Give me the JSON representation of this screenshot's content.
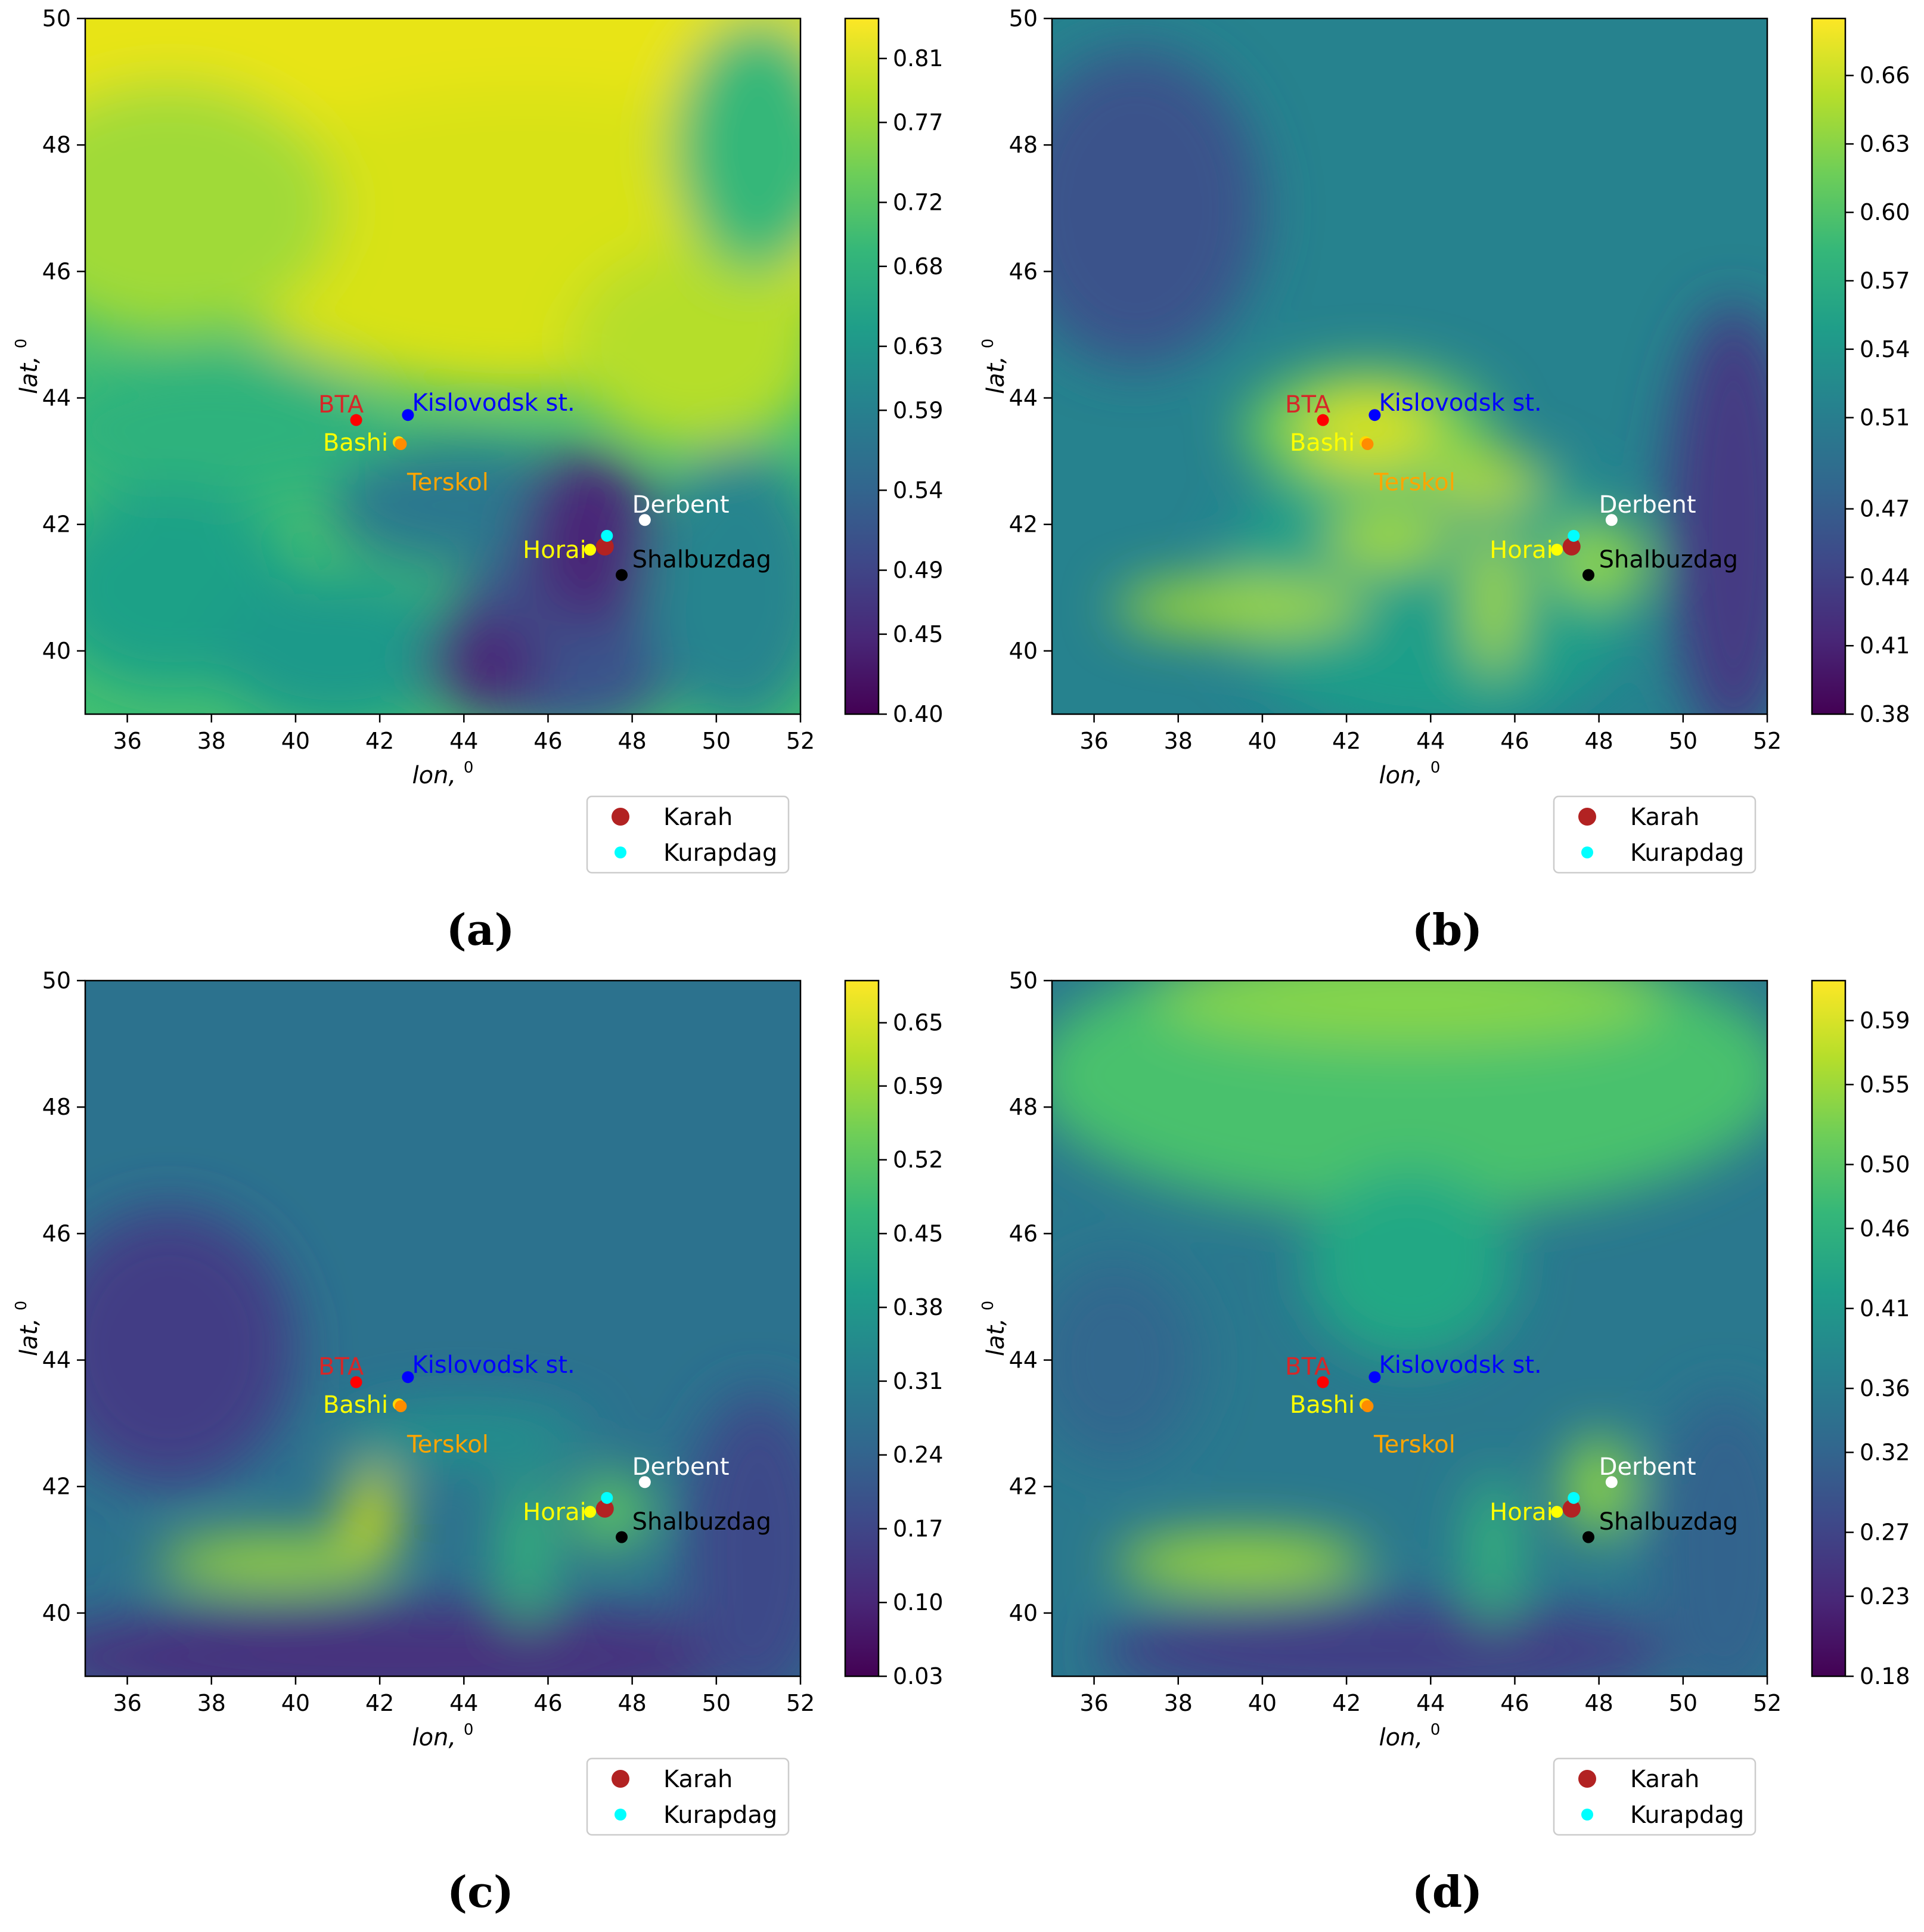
{
  "panels": [
    {
      "id": "a",
      "caption": "(a)",
      "colorbar_ticks": [
        "0.40",
        "0.45",
        "0.49",
        "0.54",
        "0.59",
        "0.63",
        "0.68",
        "0.72",
        "0.77",
        "0.81"
      ],
      "colorbar_range": [
        0.4,
        0.835
      ],
      "background": "#43bf71",
      "field": [
        {
          "type": "ellipse",
          "cx": 42,
          "cy": 49.3,
          "rx": 12,
          "ry": 2.6,
          "color": "#e8e419"
        },
        {
          "type": "ellipse",
          "cx": 45.5,
          "cy": 46.5,
          "rx": 8,
          "ry": 2.4,
          "color": "#d8e219"
        },
        {
          "type": "ellipse",
          "cx": 49.5,
          "cy": 44.8,
          "rx": 3,
          "ry": 1.6,
          "color": "#b5de2b"
        },
        {
          "type": "ellipse",
          "cx": 37,
          "cy": 47,
          "rx": 4,
          "ry": 2,
          "color": "#a0da39"
        },
        {
          "type": "ellipse",
          "cx": 51,
          "cy": 48,
          "rx": 2,
          "ry": 2,
          "color": "#35b779"
        },
        {
          "type": "ellipse",
          "cx": 38,
          "cy": 43.5,
          "rx": 4,
          "ry": 1.2,
          "color": "#2db27d"
        },
        {
          "type": "ellipse",
          "cx": 37,
          "cy": 41,
          "rx": 3,
          "ry": 1.6,
          "color": "#1fa187"
        },
        {
          "type": "ellipse",
          "cx": 41,
          "cy": 40,
          "rx": 3,
          "ry": 1.2,
          "color": "#1f9a8a"
        },
        {
          "type": "ellipse",
          "cx": 44,
          "cy": 42.3,
          "rx": 3.2,
          "ry": 1.0,
          "color": "#2a788e"
        },
        {
          "type": "ellipse",
          "cx": 46.5,
          "cy": 40.2,
          "rx": 3,
          "ry": 1.5,
          "color": "#3b528b"
        },
        {
          "type": "ellipse",
          "cx": 47,
          "cy": 41.8,
          "rx": 1.6,
          "ry": 1.4,
          "color": "#482878"
        },
        {
          "type": "ellipse",
          "cx": 44.5,
          "cy": 39.8,
          "rx": 1.4,
          "ry": 0.8,
          "color": "#482878"
        },
        {
          "type": "ellipse",
          "cx": 50.5,
          "cy": 41,
          "rx": 2.2,
          "ry": 2.2,
          "color": "#25848e"
        }
      ]
    },
    {
      "id": "b",
      "caption": "(b)",
      "colorbar_ticks": [
        "0.38",
        "0.41",
        "0.44",
        "0.47",
        "0.51",
        "0.54",
        "0.57",
        "0.60",
        "0.63",
        "0.66"
      ],
      "colorbar_range": [
        0.38,
        0.685
      ],
      "background": "#26828e",
      "field": [
        {
          "type": "ellipse",
          "cx": 37,
          "cy": 47,
          "rx": 3,
          "ry": 2.5,
          "color": "#3b528b"
        },
        {
          "type": "ellipse",
          "cx": 51.2,
          "cy": 42,
          "rx": 1.6,
          "ry": 3.5,
          "color": "#443a83"
        },
        {
          "type": "ellipse",
          "cx": 44,
          "cy": 41,
          "rx": 5,
          "ry": 2.3,
          "color": "#1f9e89"
        },
        {
          "type": "ellipse",
          "cx": 42.5,
          "cy": 43.5,
          "rx": 3,
          "ry": 1.0,
          "color": "#6ccd5a"
        },
        {
          "type": "ellipse",
          "cx": 42.5,
          "cy": 43.5,
          "rx": 1.6,
          "ry": 0.6,
          "color": "#d8e219"
        },
        {
          "type": "ellipse",
          "cx": 45.3,
          "cy": 42.7,
          "rx": 1.4,
          "ry": 0.4,
          "color": "#b5de2b"
        },
        {
          "type": "ellipse",
          "cx": 39.5,
          "cy": 40.7,
          "rx": 3,
          "ry": 0.45,
          "color": "#a0da39"
        },
        {
          "type": "ellipse",
          "cx": 43,
          "cy": 41.8,
          "rx": 1.5,
          "ry": 0.5,
          "color": "#a0da39"
        },
        {
          "type": "ellipse",
          "cx": 45.5,
          "cy": 40.8,
          "rx": 0.6,
          "ry": 1.2,
          "color": "#a0da39"
        },
        {
          "type": "ellipse",
          "cx": 48,
          "cy": 41.4,
          "rx": 1.2,
          "ry": 0.6,
          "color": "#8fd744"
        }
      ]
    },
    {
      "id": "c",
      "caption": "(c)",
      "colorbar_ticks": [
        "0.03",
        "0.10",
        "0.17",
        "0.24",
        "0.31",
        "0.38",
        "0.45",
        "0.52",
        "0.59",
        "0.65"
      ],
      "colorbar_range": [
        0.03,
        0.69
      ],
      "background": "#2c728e",
      "field": [
        {
          "type": "ellipse",
          "cx": 37,
          "cy": 44.2,
          "rx": 3,
          "ry": 2.2,
          "color": "#433e85"
        },
        {
          "type": "ellipse",
          "cx": 42.5,
          "cy": 39.3,
          "rx": 9,
          "ry": 0.9,
          "color": "#46307e"
        },
        {
          "type": "ellipse",
          "cx": 51,
          "cy": 41,
          "rx": 1.8,
          "ry": 2.5,
          "color": "#3e4a89"
        },
        {
          "type": "ellipse",
          "cx": 44,
          "cy": 42.8,
          "rx": 3,
          "ry": 0.5,
          "color": "#21918c"
        },
        {
          "type": "ellipse",
          "cx": 39.5,
          "cy": 40.8,
          "rx": 2.8,
          "ry": 0.4,
          "color": "#a0da39"
        },
        {
          "type": "ellipse",
          "cx": 41.8,
          "cy": 41.6,
          "rx": 0.6,
          "ry": 0.7,
          "color": "#d8e219"
        },
        {
          "type": "ellipse",
          "cx": 45.5,
          "cy": 41,
          "rx": 0.6,
          "ry": 1.2,
          "color": "#35b779"
        },
        {
          "type": "ellipse",
          "cx": 47.5,
          "cy": 41.6,
          "rx": 0.9,
          "ry": 0.6,
          "color": "#5ec962"
        }
      ]
    },
    {
      "id": "d",
      "caption": "(d)",
      "colorbar_ticks": [
        "0.18",
        "0.23",
        "0.27",
        "0.32",
        "0.36",
        "0.41",
        "0.46",
        "0.50",
        "0.55",
        "0.59"
      ],
      "colorbar_range": [
        0.18,
        0.615
      ],
      "background": "#2a788e",
      "field": [
        {
          "type": "ellipse",
          "cx": 43.5,
          "cy": 48.5,
          "rx": 9,
          "ry": 2.2,
          "color": "#4ac16d"
        },
        {
          "type": "ellipse",
          "cx": 43.5,
          "cy": 49.7,
          "rx": 6,
          "ry": 0.7,
          "color": "#86d549"
        },
        {
          "type": "ellipse",
          "cx": 43.5,
          "cy": 45.5,
          "rx": 2.5,
          "ry": 1.5,
          "color": "#22a884"
        },
        {
          "type": "ellipse",
          "cx": 36.5,
          "cy": 44,
          "rx": 2,
          "ry": 1.6,
          "color": "#31688e"
        },
        {
          "type": "ellipse",
          "cx": 43,
          "cy": 39.4,
          "rx": 7,
          "ry": 0.8,
          "color": "#433e85"
        },
        {
          "type": "ellipse",
          "cx": 51,
          "cy": 41,
          "rx": 1.8,
          "ry": 2.5,
          "color": "#33638d"
        },
        {
          "type": "ellipse",
          "cx": 39.5,
          "cy": 40.8,
          "rx": 3,
          "ry": 0.45,
          "color": "#a0da39"
        },
        {
          "type": "ellipse",
          "cx": 48,
          "cy": 42,
          "rx": 0.8,
          "ry": 0.8,
          "color": "#8fd744"
        },
        {
          "type": "ellipse",
          "cx": 45.5,
          "cy": 41,
          "rx": 0.6,
          "ry": 1.2,
          "color": "#35b779"
        }
      ]
    }
  ],
  "axes": {
    "xlabel": "lon,",
    "xlabel_sup": "0",
    "ylabel": "lat,",
    "ylabel_sup": "0",
    "xlim": [
      35,
      52
    ],
    "ylim": [
      39,
      50
    ],
    "xticks": [
      "36",
      "38",
      "40",
      "42",
      "44",
      "46",
      "48",
      "50",
      "52"
    ],
    "yticks": [
      "40",
      "42",
      "44",
      "46",
      "48",
      "50"
    ]
  },
  "sites": [
    {
      "name": "BTA",
      "lon": 41.44,
      "lat": 43.65,
      "color": "#ff0000",
      "label_color": "#d62728",
      "label_dx": -0.9,
      "label_dy": 0.25
    },
    {
      "name": "Kislovodsk st.",
      "lon": 42.67,
      "lat": 43.73,
      "color": "#0000ff",
      "label_color": "#0000ff",
      "label_dx": 0.1,
      "label_dy": 0.2
    },
    {
      "name": "Bashi",
      "lon": 42.45,
      "lat": 43.3,
      "color": "#ffd700",
      "label_color": "#ffff00",
      "label_dx": -1.8,
      "label_dy": 0.0
    },
    {
      "name": "Terskol",
      "lon": 42.5,
      "lat": 43.27,
      "color": "#ff8c00",
      "label_color": "#ffa500",
      "label_dx": 0.15,
      "label_dy": -0.6
    },
    {
      "name": "Derbent",
      "lon": 48.3,
      "lat": 42.07,
      "color": "#ffffff",
      "label_color": "#ffffff",
      "label_dx": -0.3,
      "label_dy": 0.25
    },
    {
      "name": "Horai",
      "lon": 47.0,
      "lat": 41.6,
      "color": "#ffff00",
      "label_color": "#ffff00",
      "label_dx": -1.6,
      "label_dy": 0.0
    },
    {
      "name": "Shalbuzdag",
      "lon": 47.75,
      "lat": 41.2,
      "color": "#000000",
      "label_color": "#000000",
      "label_dx": 0.25,
      "label_dy": 0.25
    }
  ],
  "legend": [
    {
      "name": "Karah",
      "lon": 47.35,
      "lat": 41.65,
      "color": "#b22222",
      "size": "large"
    },
    {
      "name": "Kurapdag",
      "lon": 47.4,
      "lat": 41.82,
      "color": "#00ffff",
      "size": "small"
    }
  ],
  "colormap_stops": [
    "#440154",
    "#482878",
    "#3e4989",
    "#31688e",
    "#26828e",
    "#1f9e89",
    "#35b779",
    "#6ece58",
    "#b5de2b",
    "#fde725"
  ]
}
